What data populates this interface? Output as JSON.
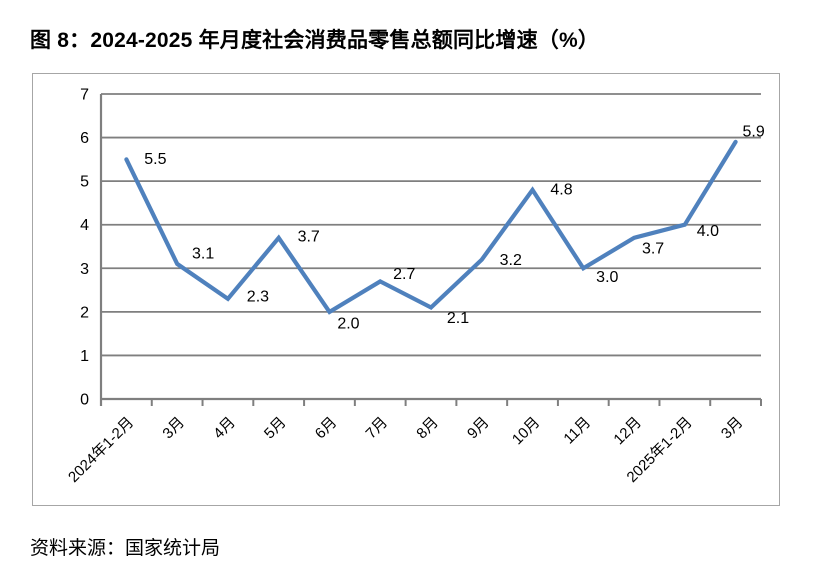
{
  "figure_title": "图 8：2024-2025 年月度社会消费品零售总额同比增速（%）",
  "source_note": "资料来源：国家统计局",
  "chart_data": {
    "type": "line",
    "title": "图 8：2024-2025 年月度社会消费品零售总额同比增速（%）",
    "categories": [
      "2024年1-2月",
      "3月",
      "4月",
      "5月",
      "6月",
      "7月",
      "8月",
      "9月",
      "10月",
      "11月",
      "12月",
      "2025年1-2月",
      "3月"
    ],
    "values": [
      5.5,
      3.1,
      2.3,
      3.7,
      2.0,
      2.7,
      2.1,
      3.2,
      4.8,
      3.0,
      3.7,
      4.0,
      5.9
    ],
    "data_labels": [
      "5.5",
      "3.1",
      "2.3",
      "3.7",
      "2.0",
      "2.7",
      "2.1",
      "3.2",
      "4.8",
      "3.0",
      "3.7",
      "4.0",
      "5.9"
    ],
    "xlabel": "",
    "ylabel": "",
    "ylim": [
      0,
      7
    ],
    "yticks": [
      0,
      1,
      2,
      3,
      4,
      5,
      6,
      7
    ],
    "grid": true,
    "legend_position": "none",
    "colors": {
      "line": "#4F81BD",
      "gridline": "#7f7f7f",
      "axis": "#7f7f7f",
      "chart_border": "#a6a6a6",
      "text": "#000000"
    }
  }
}
